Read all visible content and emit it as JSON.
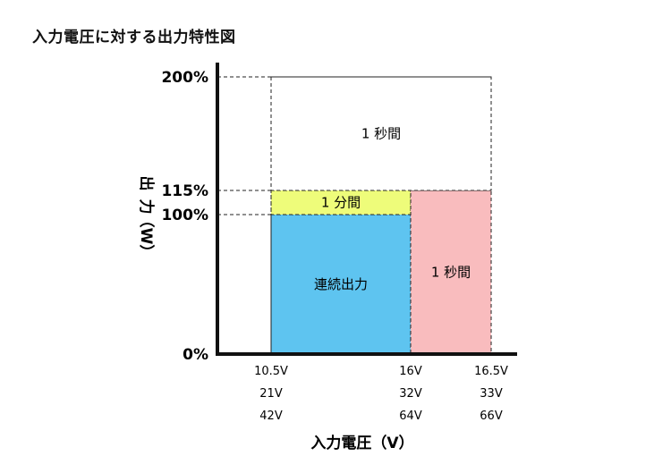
{
  "title": "入力電圧に対する出力特性図",
  "chart_data": {
    "type": "diagram",
    "y_axis": {
      "label_chars": [
        "出",
        "力",
        "（W）"
      ],
      "ticks": [
        {
          "label": "200%",
          "value": 200
        },
        {
          "label": "115%",
          "value": 115
        },
        {
          "label": "100%",
          "value": 100
        },
        {
          "label": "0%",
          "value": 0
        }
      ]
    },
    "x_axis": {
      "label": "入力電圧（V）",
      "ticks": [
        {
          "key": "a",
          "lines": [
            "10.5V",
            "21V",
            "42V"
          ]
        },
        {
          "key": "b",
          "lines": [
            "16V",
            "32V",
            "64V"
          ]
        },
        {
          "key": "c",
          "lines": [
            "16.5V",
            "33V",
            "66V"
          ]
        }
      ]
    },
    "regions": [
      {
        "label": "連続出力",
        "x_from": "a",
        "x_to": "b",
        "y_from": 0,
        "y_to": 100,
        "color": "#5ec4f0"
      },
      {
        "label": "1 分間",
        "x_from": "a",
        "x_to": "b",
        "y_from": 100,
        "y_to": 115,
        "color": "#eefc7a"
      },
      {
        "label": "1 秒間",
        "x_from": "b",
        "x_to": "c",
        "y_from": 0,
        "y_to": 115,
        "color": "#f9bcbe"
      },
      {
        "label": "1 秒間",
        "x_from": "a",
        "x_to": "c",
        "y_from": 115,
        "y_to": 200,
        "color": "#ffffff"
      }
    ]
  }
}
